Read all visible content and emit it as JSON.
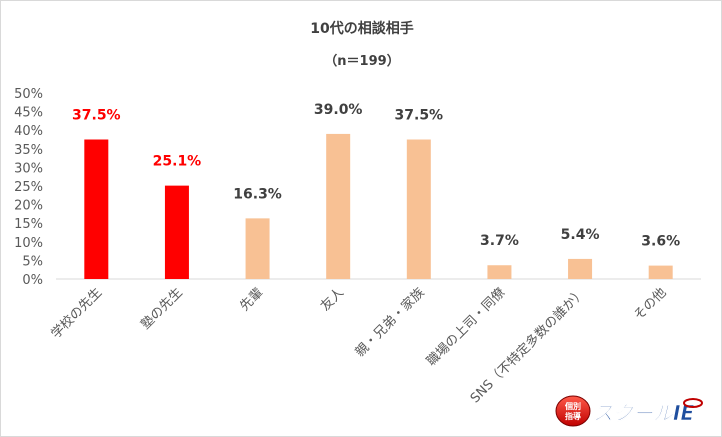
{
  "chart_data": {
    "type": "bar",
    "title": "10代の相談相手",
    "subtitle": "（n＝199）",
    "categories": [
      "学校の先生",
      "塾の先生",
      "先輩",
      "友人",
      "親・兄弟・家族",
      "職場の上司・同僚",
      "SNS（不特定多数の誰か）",
      "その他"
    ],
    "values": [
      37.5,
      25.1,
      16.3,
      39.0,
      37.5,
      3.7,
      5.4,
      3.6
    ],
    "value_labels": [
      "37.5%",
      "25.1%",
      "16.3%",
      "39.0%",
      "37.5%",
      "3.7%",
      "5.4%",
      "3.6%"
    ],
    "highlight": [
      true,
      true,
      false,
      false,
      false,
      false,
      false,
      false
    ],
    "y_ticks": [
      "0%",
      "5%",
      "10%",
      "15%",
      "20%",
      "25%",
      "30%",
      "35%",
      "40%",
      "45%",
      "50%"
    ],
    "ylim": [
      0,
      50
    ],
    "grid": false,
    "colors": {
      "highlight_bar": "#ff0000",
      "normal_bar": "#f8c194",
      "highlight_label": "#ff0000",
      "normal_label": "#404040",
      "axis": "#d9d9d9"
    }
  },
  "logo": {
    "text_left": "個別指導",
    "text_right": "スクールIE"
  }
}
